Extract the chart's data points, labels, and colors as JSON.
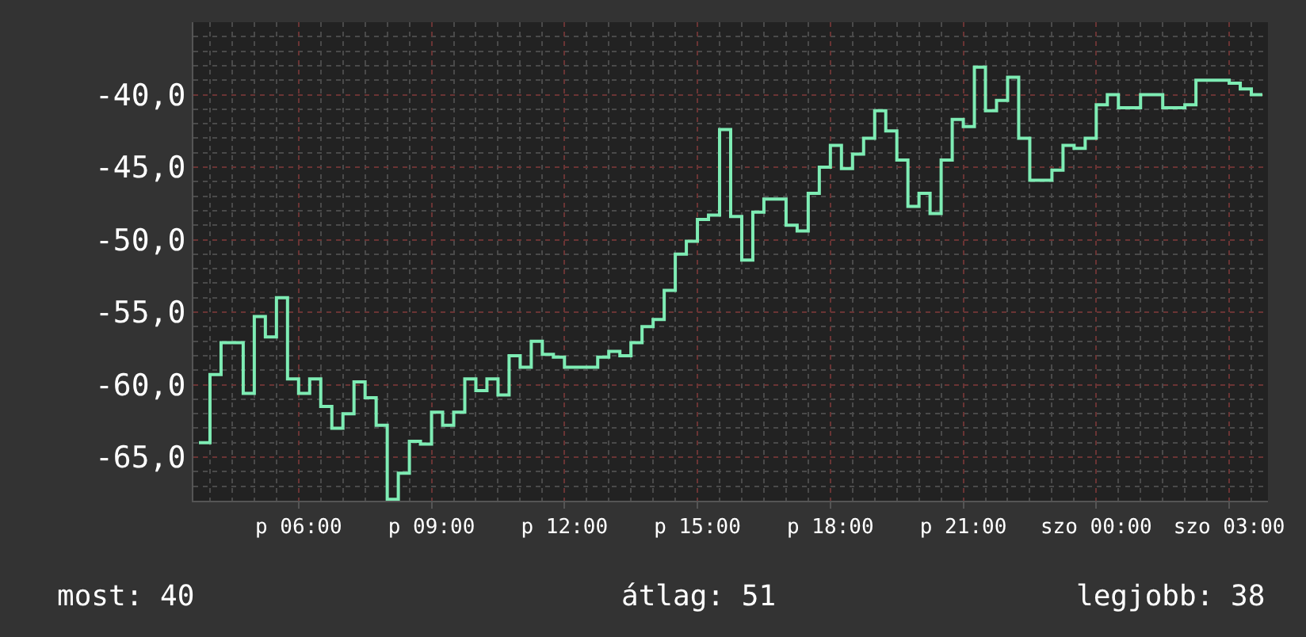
{
  "chart_data": {
    "type": "step",
    "categories": [
      null,
      null,
      null,
      null,
      null,
      null,
      null,
      null,
      null,
      "p 06:00",
      null,
      null,
      null,
      null,
      null,
      null,
      null,
      null,
      null,
      null,
      null,
      "p 09:00",
      null,
      null,
      null,
      null,
      null,
      null,
      null,
      null,
      null,
      null,
      null,
      "p 12:00",
      null,
      null,
      null,
      null,
      null,
      null,
      null,
      null,
      null,
      null,
      null,
      "p 15:00",
      null,
      null,
      null,
      null,
      null,
      null,
      null,
      null,
      null,
      null,
      null,
      "p 18:00",
      null,
      null,
      null,
      null,
      null,
      null,
      null,
      null,
      null,
      null,
      null,
      "p 21:00",
      null,
      null,
      null,
      null,
      null,
      null,
      null,
      null,
      null,
      null,
      null,
      "szo 00:00",
      null,
      null,
      null,
      null,
      null,
      null,
      null,
      null,
      null,
      null,
      null,
      "szo 03:00",
      null,
      null,
      null
    ],
    "series": [
      {
        "color": "#7eecb4",
        "values": [
          -64.0,
          -59.3,
          -57.1,
          -57.1,
          -60.6,
          -55.3,
          -56.7,
          -54.0,
          -59.6,
          -60.6,
          -59.6,
          -61.5,
          -63.0,
          -62.0,
          -59.8,
          -60.9,
          -62.8,
          -67.9,
          -66.1,
          -63.9,
          -64.1,
          -61.9,
          -62.8,
          -61.9,
          -59.6,
          -60.4,
          -59.6,
          -60.7,
          -58.0,
          -58.8,
          -57.0,
          -57.9,
          -58.1,
          -58.8,
          -58.8,
          -58.8,
          -58.1,
          -57.7,
          -58.0,
          -57.1,
          -56.0,
          -55.5,
          -53.5,
          -51.0,
          -50.1,
          -48.6,
          -48.3,
          -42.4,
          -48.4,
          -51.4,
          -48.1,
          -47.2,
          -47.2,
          -49.0,
          -49.4,
          -46.8,
          -45.0,
          -43.5,
          -45.1,
          -44.1,
          -43.0,
          -41.1,
          -42.5,
          -44.5,
          -47.7,
          -46.8,
          -48.2,
          -44.5,
          -41.7,
          -42.2,
          -38.1,
          -41.1,
          -40.4,
          -38.8,
          -43.0,
          -45.9,
          -45.9,
          -45.2,
          -43.5,
          -43.7,
          -43.0,
          -40.7,
          -40.0,
          -40.9,
          -40.9,
          -40.0,
          -40.0,
          -40.9,
          -40.9,
          -40.7,
          -39.0,
          -39.0,
          -39.0,
          -39.2,
          -39.6,
          -40.0,
          -40.0
        ]
      }
    ],
    "ylim": [
      -68,
      -35
    ],
    "yticks": [
      {
        "value": -65,
        "label": "-65,0"
      },
      {
        "value": -60,
        "label": "-60,0"
      },
      {
        "value": -55,
        "label": "-55,0"
      },
      {
        "value": -50,
        "label": "-50,0"
      },
      {
        "value": -45,
        "label": "-45,0"
      },
      {
        "value": -40,
        "label": "-40,0"
      }
    ],
    "grid": true,
    "annotations": [
      "most: 40",
      "átlag: 51",
      "legjobb: 38"
    ]
  }
}
